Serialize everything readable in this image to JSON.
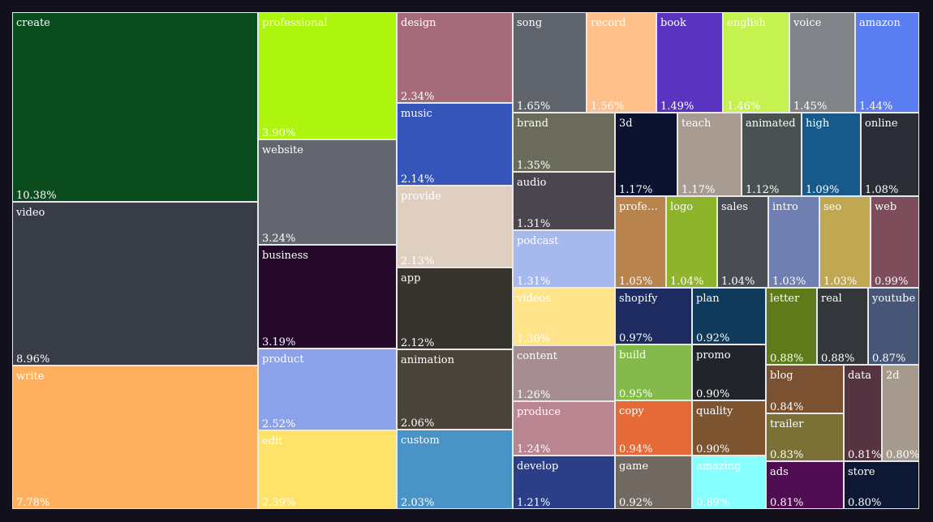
{
  "chart_data": {
    "type": "treemap",
    "title": "",
    "value_unit": "%",
    "items": [
      {
        "label": "create",
        "value": 10.38,
        "color": "#0b4c1e"
      },
      {
        "label": "video",
        "value": 8.96,
        "color": "#373c47"
      },
      {
        "label": "write",
        "value": 7.78,
        "color": "#ffb05f"
      },
      {
        "label": "professional",
        "value": 3.9,
        "color": "#aef510"
      },
      {
        "label": "website",
        "value": 3.24,
        "color": "#63666e"
      },
      {
        "label": "business",
        "value": 3.19,
        "color": "#24092b"
      },
      {
        "label": "product",
        "value": 2.52,
        "color": "#8ba1ea"
      },
      {
        "label": "edit",
        "value": 2.39,
        "color": "#ffe26a"
      },
      {
        "label": "design",
        "value": 2.34,
        "color": "#a66b7b"
      },
      {
        "label": "music",
        "value": 2.14,
        "color": "#3556b8"
      },
      {
        "label": "provide",
        "value": 2.13,
        "color": "#dfcfc1"
      },
      {
        "label": "app",
        "value": 2.12,
        "color": "#37332d"
      },
      {
        "label": "animation",
        "value": 2.06,
        "color": "#4a4339"
      },
      {
        "label": "custom",
        "value": 2.03,
        "color": "#4993c6"
      },
      {
        "label": "song",
        "value": 1.65,
        "color": "#60646c"
      },
      {
        "label": "record",
        "value": 1.56,
        "color": "#ffc08a"
      },
      {
        "label": "book",
        "value": 1.49,
        "color": "#5a34c0"
      },
      {
        "label": "english",
        "value": 1.46,
        "color": "#c5f250"
      },
      {
        "label": "voice",
        "value": 1.45,
        "color": "#808489"
      },
      {
        "label": "amazon",
        "value": 1.44,
        "color": "#5a7ef2"
      },
      {
        "label": "brand",
        "value": 1.35,
        "color": "#6b6b5c"
      },
      {
        "label": "audio",
        "value": 1.31,
        "color": "#4b4550"
      },
      {
        "label": "podcast",
        "value": 1.31,
        "color": "#a6b9ee"
      },
      {
        "label": "3d",
        "value": 1.17,
        "color": "#0c1330"
      },
      {
        "label": "teach",
        "value": 1.17,
        "color": "#a89b91"
      },
      {
        "label": "animated",
        "value": 1.12,
        "color": "#4a5151"
      },
      {
        "label": "high",
        "value": 1.09,
        "color": "#175a8a"
      },
      {
        "label": "online",
        "value": 1.08,
        "color": "#2b2e36"
      },
      {
        "label": "professionally",
        "value": 1.05,
        "color": "#b8834d"
      },
      {
        "label": "logo",
        "value": 1.04,
        "color": "#8eb42c"
      },
      {
        "label": "sales",
        "value": 1.04,
        "color": "#4a4c54"
      },
      {
        "label": "intro",
        "value": 1.03,
        "color": "#6f7fb2"
      },
      {
        "label": "seo",
        "value": 1.03,
        "color": "#c0a752"
      },
      {
        "label": "web",
        "value": 0.99,
        "color": "#7d4d5b"
      },
      {
        "label": "videos",
        "value": 1.3,
        "color": "#ffe48b"
      },
      {
        "label": "content",
        "value": 1.26,
        "color": "#a68d92"
      },
      {
        "label": "produce",
        "value": 1.24,
        "color": "#b88591"
      },
      {
        "label": "develop",
        "value": 1.21,
        "color": "#2a3f88"
      },
      {
        "label": "shopify",
        "value": 0.97,
        "color": "#1d2b61"
      },
      {
        "label": "plan",
        "value": 0.92,
        "color": "#103a5c"
      },
      {
        "label": "build",
        "value": 0.95,
        "color": "#83ba4b"
      },
      {
        "label": "promo",
        "value": 0.9,
        "color": "#21242b"
      },
      {
        "label": "copy",
        "value": 0.94,
        "color": "#e66a37"
      },
      {
        "label": "quality",
        "value": 0.9,
        "color": "#7c5530"
      },
      {
        "label": "game",
        "value": 0.92,
        "color": "#716862"
      },
      {
        "label": "amazing",
        "value": 0.89,
        "color": "#86ffff"
      },
      {
        "label": "letter",
        "value": 0.88,
        "color": "#5f7a1a"
      },
      {
        "label": "real",
        "value": 0.88,
        "color": "#33363b"
      },
      {
        "label": "youtube",
        "value": 0.87,
        "color": "#475577"
      },
      {
        "label": "blog",
        "value": 0.84,
        "color": "#7b5231"
      },
      {
        "label": "trailer",
        "value": 0.83,
        "color": "#7b7035"
      },
      {
        "label": "ads",
        "value": 0.81,
        "color": "#4f0c50"
      },
      {
        "label": "data",
        "value": 0.81,
        "color": "#553340"
      },
      {
        "label": "2d",
        "value": 0.8,
        "color": "#a59a8d"
      },
      {
        "label": "store",
        "value": 0.8,
        "color": "#0e1834"
      }
    ]
  }
}
